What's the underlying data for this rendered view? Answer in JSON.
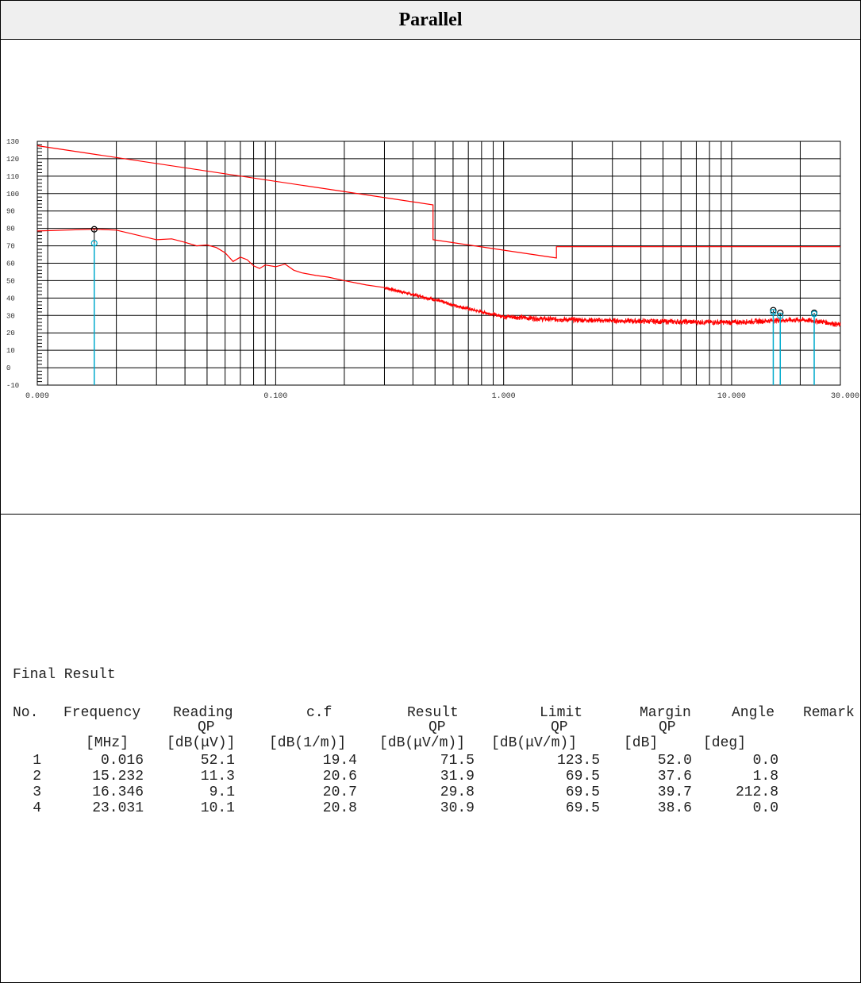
{
  "page": {
    "title": "Parallel"
  },
  "chart_data": {
    "type": "line",
    "title": "",
    "xlabel": "",
    "ylabel": "",
    "x_scale": "log",
    "xlim": [
      0.009,
      30.0
    ],
    "ylim": [
      -10,
      130
    ],
    "grid": true,
    "x_ticks": [
      "0.009",
      "0.100",
      "1.000",
      "10.000",
      "30.000"
    ],
    "y_ticks": [
      "130",
      "120",
      "110",
      "100",
      "90",
      "80",
      "70",
      "60",
      "50",
      "40",
      "30",
      "20",
      "10",
      "0",
      "-10"
    ],
    "series": [
      {
        "color": "#ff0000",
        "x": [
          0.009,
          0.49,
          0.49,
          1.705,
          1.705,
          30.0
        ],
        "y": [
          127.5,
          93.5,
          73.5,
          63.0,
          69.5,
          69.5
        ]
      },
      {
        "color": "#ff0000",
        "x": [
          0.009,
          0.012,
          0.016,
          0.02,
          0.025,
          0.03,
          0.035,
          0.04,
          0.045,
          0.05,
          0.055,
          0.06,
          0.065,
          0.07,
          0.075,
          0.08,
          0.085,
          0.09,
          0.1,
          0.11,
          0.12,
          0.13,
          0.15,
          0.17,
          0.2,
          0.25,
          0.3,
          0.4,
          0.5,
          0.6,
          0.8,
          1.0,
          1.5,
          2.0,
          3.0,
          5.0,
          10.0,
          15.0,
          20.0,
          25.0,
          30.0
        ],
        "y": [
          78.5,
          79.0,
          79.5,
          79.0,
          76.0,
          73.5,
          74.0,
          72.0,
          70.0,
          70.5,
          69.0,
          66.0,
          61.0,
          63.5,
          62.0,
          58.5,
          57.0,
          59.0,
          58.0,
          59.5,
          56.0,
          54.5,
          53.0,
          52.0,
          50.0,
          47.5,
          46.0,
          42.0,
          39.0,
          36.0,
          32.0,
          29.5,
          28.0,
          27.5,
          27.0,
          26.5,
          26.0,
          27.0,
          27.5,
          26.5,
          24.5
        ]
      }
    ],
    "markers": [
      {
        "x": 0.016,
        "y": 79.5,
        "color": "#000000"
      },
      {
        "x": 0.016,
        "y": 71.5,
        "color": "#00aacc"
      },
      {
        "x": 15.232,
        "y": 33.0,
        "color": "#000000"
      },
      {
        "x": 15.232,
        "y": 31.9,
        "color": "#00aacc"
      },
      {
        "x": 16.346,
        "y": 31.5,
        "color": "#000000"
      },
      {
        "x": 16.346,
        "y": 29.8,
        "color": "#00aacc"
      },
      {
        "x": 23.031,
        "y": 31.5,
        "color": "#000000"
      },
      {
        "x": 23.031,
        "y": 30.9,
        "color": "#00aacc"
      }
    ]
  },
  "results": {
    "title": "Final Result",
    "headers": {
      "row1": [
        "No.",
        "Frequency",
        "Reading",
        "c.f",
        "Result",
        "Limit",
        "Margin",
        "Angle",
        "Remark"
      ],
      "row2": [
        "QP",
        "QP",
        "QP",
        "QP"
      ],
      "row3": [
        "[MHz]",
        "[dB(μV)]",
        "[dB(1/m)]",
        "[dB(μV/m)]",
        "[dB(μV/m)]",
        "[dB]",
        "[deg]"
      ]
    },
    "rows": [
      [
        "1",
        "0.016",
        "52.1",
        "19.4",
        "71.5",
        "123.5",
        "52.0",
        "0.0"
      ],
      [
        "2",
        "15.232",
        "11.3",
        "20.6",
        "31.9",
        "69.5",
        "37.6",
        "1.8"
      ],
      [
        "3",
        "16.346",
        "9.1",
        "20.7",
        "29.8",
        "69.5",
        "39.7",
        "212.8"
      ],
      [
        "4",
        "23.031",
        "10.1",
        "20.8",
        "30.9",
        "69.5",
        "38.6",
        "0.0"
      ]
    ]
  }
}
